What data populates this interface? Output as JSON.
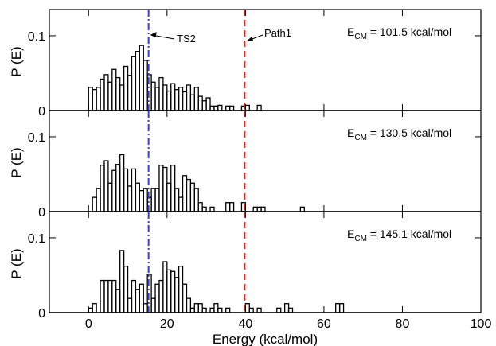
{
  "chart_data": {
    "type": "bar",
    "xlabel": "Energy (kcal/mol)",
    "ylabel": "P (E)",
    "xlim": [
      -10,
      100
    ],
    "ylim": [
      0,
      0.135
    ],
    "x_ticks": [
      0,
      20,
      40,
      60,
      80,
      100
    ],
    "y_ticks": [
      0,
      0.1
    ],
    "y_tick_labels": [
      "0",
      "0.1"
    ],
    "bin_width": 1,
    "reference_lines": [
      {
        "label": "TS2",
        "x": 15.3,
        "color": "#3b3bd6",
        "style": "dash-dot"
      },
      {
        "label": "Path1",
        "x": 39.8,
        "color": "#e0281e",
        "style": "dashed"
      }
    ],
    "panels": [
      {
        "label_main": "E",
        "label_sub": "CM",
        "label_value": " = 101.5 kcal/mol",
        "show_annotations": true,
        "bins": [
          [
            0,
            0.031
          ],
          [
            1,
            0.028
          ],
          [
            2,
            0.031
          ],
          [
            3,
            0.042
          ],
          [
            4,
            0.048
          ],
          [
            5,
            0.038
          ],
          [
            6,
            0.055
          ],
          [
            7,
            0.044
          ],
          [
            8,
            0.034
          ],
          [
            9,
            0.059
          ],
          [
            10,
            0.047
          ],
          [
            11,
            0.072
          ],
          [
            12,
            0.079
          ],
          [
            13,
            0.087
          ],
          [
            14,
            0.067
          ],
          [
            15,
            0.048
          ],
          [
            16,
            0.038
          ],
          [
            17,
            0.031
          ],
          [
            18,
            0.044
          ],
          [
            19,
            0.034
          ],
          [
            20,
            0.026
          ],
          [
            21,
            0.036
          ],
          [
            22,
            0.028
          ],
          [
            23,
            0.031
          ],
          [
            24,
            0.025
          ],
          [
            25,
            0.034
          ],
          [
            26,
            0.021
          ],
          [
            27,
            0.031
          ],
          [
            28,
            0.019
          ],
          [
            29,
            0.013
          ],
          [
            30,
            0.017
          ],
          [
            31,
            0.006
          ],
          [
            32,
            0.006
          ],
          [
            33,
            0.007
          ],
          [
            35,
            0.006
          ],
          [
            36,
            0.006
          ],
          [
            39,
            0.006
          ],
          [
            40,
            0.007
          ],
          [
            43,
            0.007
          ]
        ]
      },
      {
        "label_main": "E",
        "label_sub": "CM",
        "label_value": " = 130.5 kcal/mol",
        "show_annotations": false,
        "bins": [
          [
            0,
            0.0
          ],
          [
            1,
            0.019
          ],
          [
            2,
            0.031
          ],
          [
            3,
            0.062
          ],
          [
            4,
            0.068
          ],
          [
            5,
            0.038
          ],
          [
            6,
            0.055
          ],
          [
            7,
            0.063
          ],
          [
            8,
            0.076
          ],
          [
            9,
            0.057
          ],
          [
            10,
            0.034
          ],
          [
            11,
            0.057
          ],
          [
            12,
            0.038
          ],
          [
            13,
            0.028
          ],
          [
            14,
            0.031
          ],
          [
            15,
            0.019
          ],
          [
            16,
            0.031
          ],
          [
            17,
            0.031
          ],
          [
            18,
            0.062
          ],
          [
            19,
            0.059
          ],
          [
            20,
            0.038
          ],
          [
            21,
            0.062
          ],
          [
            22,
            0.031
          ],
          [
            23,
            0.019
          ],
          [
            24,
            0.048
          ],
          [
            25,
            0.043
          ],
          [
            26,
            0.038
          ],
          [
            27,
            0.031
          ],
          [
            28,
            0.012
          ],
          [
            29,
            0.006
          ],
          [
            31,
            0.006
          ],
          [
            35,
            0.012
          ],
          [
            36,
            0.012
          ],
          [
            39,
            0.012
          ],
          [
            42,
            0.006
          ],
          [
            43,
            0.006
          ],
          [
            44,
            0.006
          ],
          [
            54,
            0.006
          ]
        ]
      },
      {
        "label_main": "E",
        "label_sub": "CM",
        "label_value": " = 145.1 kcal/mol",
        "show_annotations": false,
        "bins": [
          [
            0,
            0.006
          ],
          [
            1,
            0.012
          ],
          [
            2,
            0.0
          ],
          [
            3,
            0.043
          ],
          [
            4,
            0.043
          ],
          [
            5,
            0.043
          ],
          [
            6,
            0.043
          ],
          [
            7,
            0.031
          ],
          [
            8,
            0.083
          ],
          [
            9,
            0.062
          ],
          [
            10,
            0.019
          ],
          [
            11,
            0.043
          ],
          [
            12,
            0.031
          ],
          [
            13,
            0.038
          ],
          [
            14,
            0.012
          ],
          [
            15,
            0.051
          ],
          [
            16,
            0.019
          ],
          [
            17,
            0.038
          ],
          [
            18,
            0.043
          ],
          [
            19,
            0.068
          ],
          [
            20,
            0.057
          ],
          [
            21,
            0.055
          ],
          [
            22,
            0.047
          ],
          [
            23,
            0.062
          ],
          [
            24,
            0.038
          ],
          [
            25,
            0.019
          ],
          [
            26,
            0.006
          ],
          [
            27,
            0.012
          ],
          [
            28,
            0.012
          ],
          [
            29,
            0.006
          ],
          [
            31,
            0.006
          ],
          [
            32,
            0.012
          ],
          [
            33,
            0.006
          ],
          [
            35,
            0.006
          ],
          [
            40,
            0.012
          ],
          [
            41,
            0.006
          ],
          [
            43,
            0.006
          ],
          [
            48,
            0.006
          ],
          [
            50,
            0.012
          ],
          [
            51,
            0.006
          ],
          [
            63,
            0.012
          ],
          [
            64,
            0.012
          ]
        ]
      }
    ]
  },
  "annotations": {
    "ts2_label": "TS2",
    "path1_label": "Path1"
  }
}
